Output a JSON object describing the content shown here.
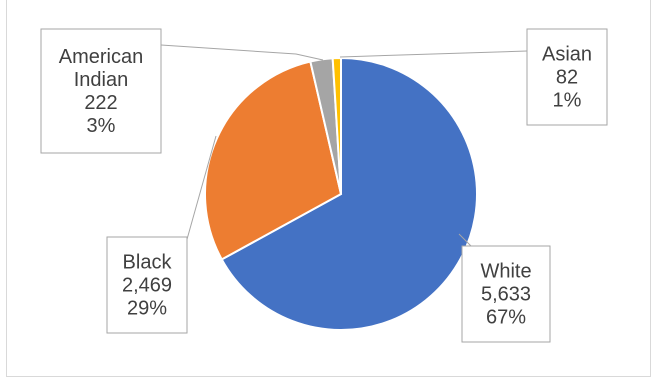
{
  "chart_data": {
    "type": "pie",
    "title": "",
    "categories": [
      "White",
      "Black",
      "American Indian",
      "Asian"
    ],
    "values": [
      5633,
      2469,
      222,
      82
    ],
    "percent_labels": [
      "67%",
      "29%",
      "3%",
      "1%"
    ],
    "value_labels": [
      "5,633",
      "2,469",
      "222",
      "82"
    ],
    "label_lines": [
      [
        "White",
        "5,633",
        "67%"
      ],
      [
        "Black",
        "2,469",
        "29%"
      ],
      [
        "American",
        "Indian",
        "222",
        "3%"
      ],
      [
        "Asian",
        "82",
        "1%"
      ]
    ],
    "colors": [
      "#4472c4",
      "#ed7d31",
      "#a5a5a5",
      "#ffc000"
    ],
    "legend": "none"
  }
}
